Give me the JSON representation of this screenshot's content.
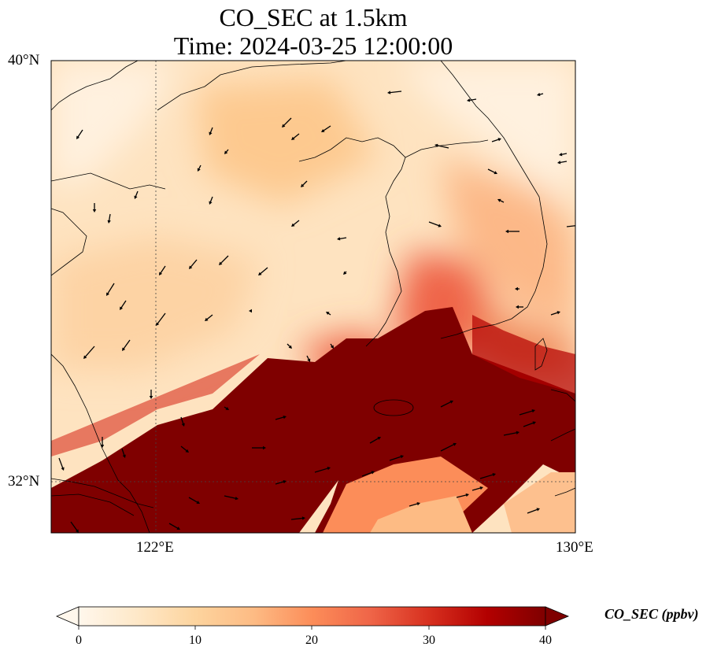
{
  "map": {
    "title_line1": "CO_SEC at 1.5km",
    "title_line2": "Time: 2024-03-25 12:00:00",
    "lon_range": [
      117,
      130
    ],
    "lat_range": [
      30.7,
      40
    ],
    "lat_ticks": [
      {
        "value": 40,
        "label": "40°N"
      },
      {
        "value": 32,
        "label": "32°N"
      }
    ],
    "lon_ticks": [
      {
        "value": 122,
        "label": "122°E"
      },
      {
        "value": 130,
        "label": "130°E"
      }
    ],
    "gridlines": {
      "lons": [
        122
      ],
      "lats": [
        32
      ]
    },
    "field": "CO_SEC",
    "colormap": "OrRd",
    "wind_vectors": true
  },
  "colorbar": {
    "label": "CO_SEC (ppbv)",
    "min": 0,
    "max": 40,
    "ticks": [
      "0",
      "10",
      "20",
      "30",
      "40"
    ],
    "extend": "both",
    "colors": [
      "#fff7ec",
      "#fee8c8",
      "#fdd49e",
      "#fdbb84",
      "#fc8d59",
      "#ef6548",
      "#d7301f",
      "#b30000",
      "#7f0000"
    ]
  }
}
